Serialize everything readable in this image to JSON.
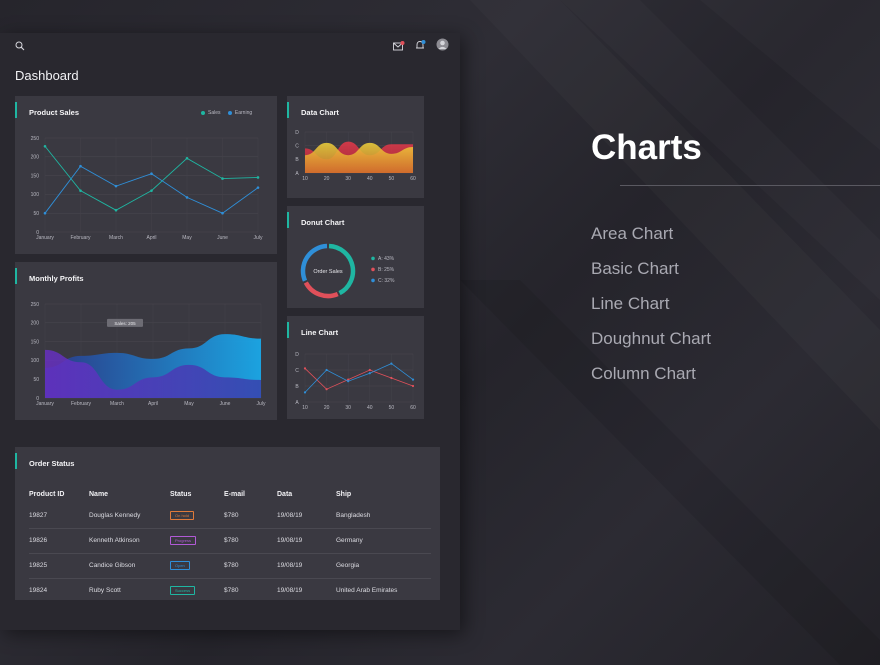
{
  "header": {
    "page_title": "Dashboard"
  },
  "showcase": {
    "title": "Charts",
    "items": [
      "Area Chart",
      "Basic Chart",
      "Line Chart",
      "Doughnut Chart",
      "Column Chart"
    ]
  },
  "colors": {
    "accent": "#1fb6a2",
    "sales": "#1fb6a2",
    "earning": "#2f8fd8",
    "card_bg": "#3a3941",
    "panel_bg": "#29282f"
  },
  "product_sales": {
    "title": "Product Sales",
    "legend": [
      "Sales",
      "Earning"
    ],
    "yticks": [
      "250",
      "200",
      "150",
      "100",
      "50",
      "0"
    ],
    "xticks": [
      "January",
      "February",
      "March",
      "April",
      "May",
      "June",
      "July"
    ]
  },
  "monthly_profits": {
    "title": "Monthly Profits",
    "tooltip": "Sales: 205",
    "yticks": [
      "250",
      "200",
      "150",
      "100",
      "50",
      "0"
    ],
    "xticks": [
      "January",
      "February",
      "March",
      "April",
      "May",
      "June",
      "July"
    ]
  },
  "data_chart": {
    "title": "Data Chart",
    "yticks": [
      "D",
      "C",
      "B",
      "A"
    ],
    "xticks": [
      "10",
      "20",
      "30",
      "40",
      "50",
      "60"
    ]
  },
  "donut_chart": {
    "title": "Donut Chart",
    "center_label": "Order Sales",
    "legend": [
      "A: 43%",
      "B: 25%",
      "C: 32%"
    ]
  },
  "line_chart": {
    "title": "Line Chart",
    "yticks": [
      "D",
      "C",
      "B",
      "A"
    ],
    "xticks": [
      "10",
      "20",
      "30",
      "40",
      "50",
      "60"
    ]
  },
  "order_status": {
    "title": "Order Status",
    "columns": [
      "Product ID",
      "Name",
      "Status",
      "E-mail",
      "Data",
      "Ship"
    ],
    "rows": [
      {
        "id": "19827",
        "name": "Douglas Kennedy",
        "status": "On hold",
        "status_color": "#e07a3a",
        "email": "$780",
        "date": "19/08/19",
        "ship": "Bangladesh"
      },
      {
        "id": "19826",
        "name": "Kenneth Atkinson",
        "status": "Progress",
        "status_color": "#b15ad6",
        "email": "$780",
        "date": "19/08/19",
        "ship": "Germany"
      },
      {
        "id": "19825",
        "name": "Candice Gibson",
        "status": "Open",
        "status_color": "#2f8fd8",
        "email": "$780",
        "date": "19/08/19",
        "ship": "Georgia"
      },
      {
        "id": "19824",
        "name": "Ruby Scott",
        "status": "Success",
        "status_color": "#1fb6a2",
        "email": "$780",
        "date": "19/08/19",
        "ship": "United Arab Emirates"
      }
    ]
  },
  "chart_data": [
    {
      "type": "line",
      "title": "Product Sales",
      "categories": [
        "January",
        "February",
        "March",
        "April",
        "May",
        "June",
        "July"
      ],
      "ylim": [
        0,
        250
      ],
      "series": [
        {
          "name": "Sales",
          "color": "#1fb6a2",
          "values": [
            228,
            110,
            58,
            110,
            196,
            142,
            145
          ]
        },
        {
          "name": "Earning",
          "color": "#2f8fd8",
          "values": [
            50,
            175,
            122,
            155,
            92,
            50,
            118
          ]
        }
      ]
    },
    {
      "type": "area",
      "title": "Monthly Profits",
      "categories": [
        "January",
        "February",
        "March",
        "April",
        "May",
        "June",
        "July"
      ],
      "ylim": [
        0,
        250
      ],
      "series": [
        {
          "values": [
            80,
            112,
            120,
            104,
            132,
            170,
            158
          ]
        },
        {
          "values": [
            128,
            95,
            22,
            55,
            88,
            55,
            48
          ]
        }
      ]
    },
    {
      "type": "area",
      "title": "Data Chart",
      "categories": [
        "10",
        "20",
        "30",
        "40",
        "50",
        "60"
      ],
      "y_levels": [
        "A",
        "B",
        "C",
        "D"
      ],
      "series": [
        {
          "values": [
            1.8,
            1.0,
            2.3,
            1.3,
            2.1,
            2.1
          ]
        },
        {
          "values": [
            1.3,
            2.2,
            1.3,
            2.2,
            1.4,
            1.9
          ]
        }
      ]
    },
    {
      "type": "pie",
      "title": "Donut Chart",
      "categories": [
        "A",
        "B",
        "C"
      ],
      "values": [
        43,
        25,
        32
      ]
    },
    {
      "type": "line",
      "title": "Line Chart",
      "categories": [
        "10",
        "20",
        "30",
        "40",
        "50",
        "60"
      ],
      "y_levels": [
        "A",
        "B",
        "C",
        "D"
      ],
      "series": [
        {
          "color": "#e0505a",
          "values": [
            2.1,
            0.8,
            1.4,
            2.0,
            1.5,
            1.0
          ]
        },
        {
          "color": "#2f8fd8",
          "values": [
            0.6,
            2.0,
            1.3,
            1.8,
            2.4,
            1.4
          ]
        }
      ]
    }
  ]
}
